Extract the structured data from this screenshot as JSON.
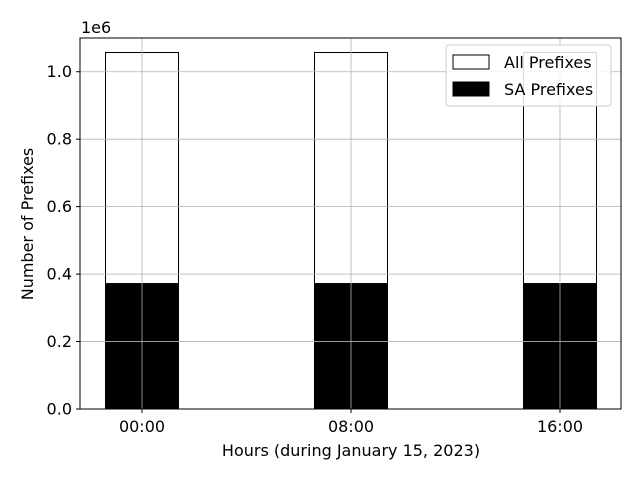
{
  "chart_data": {
    "type": "bar",
    "categories": [
      "00:00",
      "08:00",
      "16:00"
    ],
    "series": [
      {
        "name": "All Prefixes",
        "values": [
          1057000,
          1057000,
          1057000
        ]
      },
      {
        "name": "SA Prefixes",
        "values": [
          372000,
          372000,
          372000
        ]
      }
    ],
    "xlabel": "Hours (during January 15, 2023)",
    "ylabel": "Number of Prefixes",
    "y_offset_label": "1e6",
    "y_scale_factor": 1000000,
    "ylim": [
      0,
      1100000
    ],
    "yticks": [
      0,
      200000,
      400000,
      600000,
      800000,
      1000000
    ],
    "ytick_labels": [
      "0.0",
      "0.2",
      "0.4",
      "0.6",
      "0.8",
      "1.0"
    ],
    "grid": true,
    "legend_position": "top-right",
    "colors": {
      "All Prefixes_fill": "#ffffff",
      "SA Prefixes_fill": "#000000",
      "bar_edge": "#000000",
      "grid": "#b0b0b0"
    }
  }
}
